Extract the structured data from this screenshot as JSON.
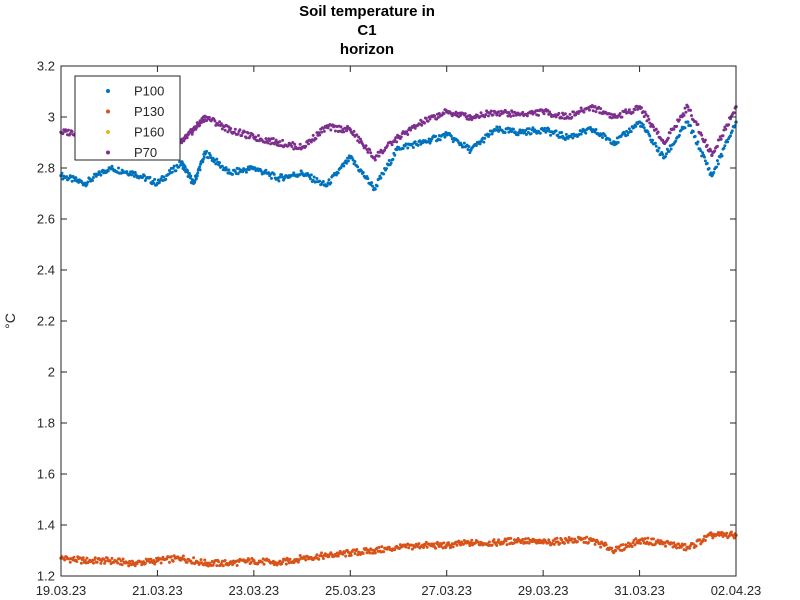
{
  "chart_data": {
    "type": "scatter",
    "title": [
      "Soil temperature in",
      "C1",
      "horizon"
    ],
    "xlabel": "",
    "ylabel": "°C",
    "xlim": [
      "19.03.23",
      "02.04.23"
    ],
    "ylim": [
      1.2,
      3.2
    ],
    "x_ticks": [
      "19.03.23",
      "21.03.23",
      "23.03.23",
      "25.03.23",
      "27.03.23",
      "29.03.23",
      "31.03.23",
      "02.04.23"
    ],
    "y_ticks": [
      "1.2",
      "1.4",
      "1.6",
      "1.8",
      "2",
      "2.2",
      "2.4",
      "2.6",
      "2.8",
      "3",
      "3.2"
    ],
    "grid": false,
    "legend_position": "top-left",
    "series": [
      {
        "name": "P100",
        "color": "#0072BD",
        "x": [
          "19.03.23",
          "19.03.23 12:00",
          "20.03.23",
          "20.03.23 12:00",
          "21.03.23",
          "21.03.23 12:00",
          "21.03.23 18:00",
          "22.03.23",
          "22.03.23 12:00",
          "23.03.23",
          "23.03.23 12:00",
          "24.03.23",
          "24.03.23 12:00",
          "25.03.23",
          "25.03.23 12:00",
          "26.03.23",
          "26.03.23 12:00",
          "27.03.23",
          "27.03.23 12:00",
          "28.03.23",
          "28.03.23 12:00",
          "29.03.23",
          "29.03.23 12:00",
          "30.03.23",
          "30.03.23 12:00",
          "31.03.23",
          "31.03.23 12:00",
          "01.04.23",
          "01.04.23 12:00",
          "02.04.23"
        ],
        "y": [
          2.77,
          2.74,
          2.8,
          2.78,
          2.74,
          2.82,
          2.74,
          2.86,
          2.78,
          2.8,
          2.76,
          2.78,
          2.73,
          2.84,
          2.72,
          2.88,
          2.9,
          2.93,
          2.87,
          2.95,
          2.94,
          2.95,
          2.92,
          2.95,
          2.9,
          2.98,
          2.84,
          2.98,
          2.77,
          2.98
        ]
      },
      {
        "name": "P130",
        "color": "#D95319",
        "x": [
          "19.03.23",
          "19.03.23 12:00",
          "20.03.23",
          "20.03.23 12:00",
          "21.03.23",
          "21.03.23 12:00",
          "22.03.23",
          "22.03.23 12:00",
          "23.03.23",
          "23.03.23 12:00",
          "24.03.23",
          "24.03.23 12:00",
          "25.03.23",
          "25.03.23 12:00",
          "26.03.23",
          "26.03.23 12:00",
          "27.03.23",
          "27.03.23 12:00",
          "28.03.23",
          "28.03.23 12:00",
          "29.03.23",
          "29.03.23 12:00",
          "30.03.23",
          "30.03.23 12:00",
          "31.03.23",
          "31.03.23 12:00",
          "01.04.23",
          "01.04.23 12:00",
          "02.04.23"
        ],
        "y": [
          1.27,
          1.26,
          1.26,
          1.25,
          1.26,
          1.27,
          1.25,
          1.25,
          1.26,
          1.25,
          1.27,
          1.28,
          1.29,
          1.3,
          1.31,
          1.32,
          1.32,
          1.33,
          1.33,
          1.34,
          1.33,
          1.34,
          1.34,
          1.3,
          1.34,
          1.33,
          1.31,
          1.36,
          1.36
        ]
      },
      {
        "name": "P160",
        "color": "#EDB120",
        "x": [],
        "y": []
      },
      {
        "name": "P70",
        "color": "#7E2F8E",
        "x": [
          "19.03.23",
          "19.03.23 12:00",
          "20.03.23",
          "20.03.23 12:00",
          "21.03.23",
          "21.03.23 12:00",
          "21.03.23 18:00",
          "22.03.23",
          "22.03.23 12:00",
          "23.03.23",
          "23.03.23 12:00",
          "24.03.23",
          "24.03.23 12:00",
          "25.03.23",
          "25.03.23 12:00",
          "26.03.23",
          "26.03.23 12:00",
          "27.03.23",
          "27.03.23 12:00",
          "28.03.23",
          "28.03.23 12:00",
          "29.03.23",
          "29.03.23 12:00",
          "30.03.23",
          "30.03.23 12:00",
          "31.03.23",
          "31.03.23 12:00",
          "01.04.23",
          "01.04.23 12:00",
          "02.04.23"
        ],
        "y": [
          2.94,
          2.94,
          2.98,
          2.96,
          2.92,
          2.9,
          2.95,
          3.0,
          2.95,
          2.92,
          2.9,
          2.88,
          2.96,
          2.95,
          2.84,
          2.92,
          2.98,
          3.02,
          3.0,
          3.02,
          3.01,
          3.02,
          3.0,
          3.04,
          3.0,
          3.04,
          2.9,
          3.04,
          2.85,
          3.04
        ]
      }
    ]
  }
}
